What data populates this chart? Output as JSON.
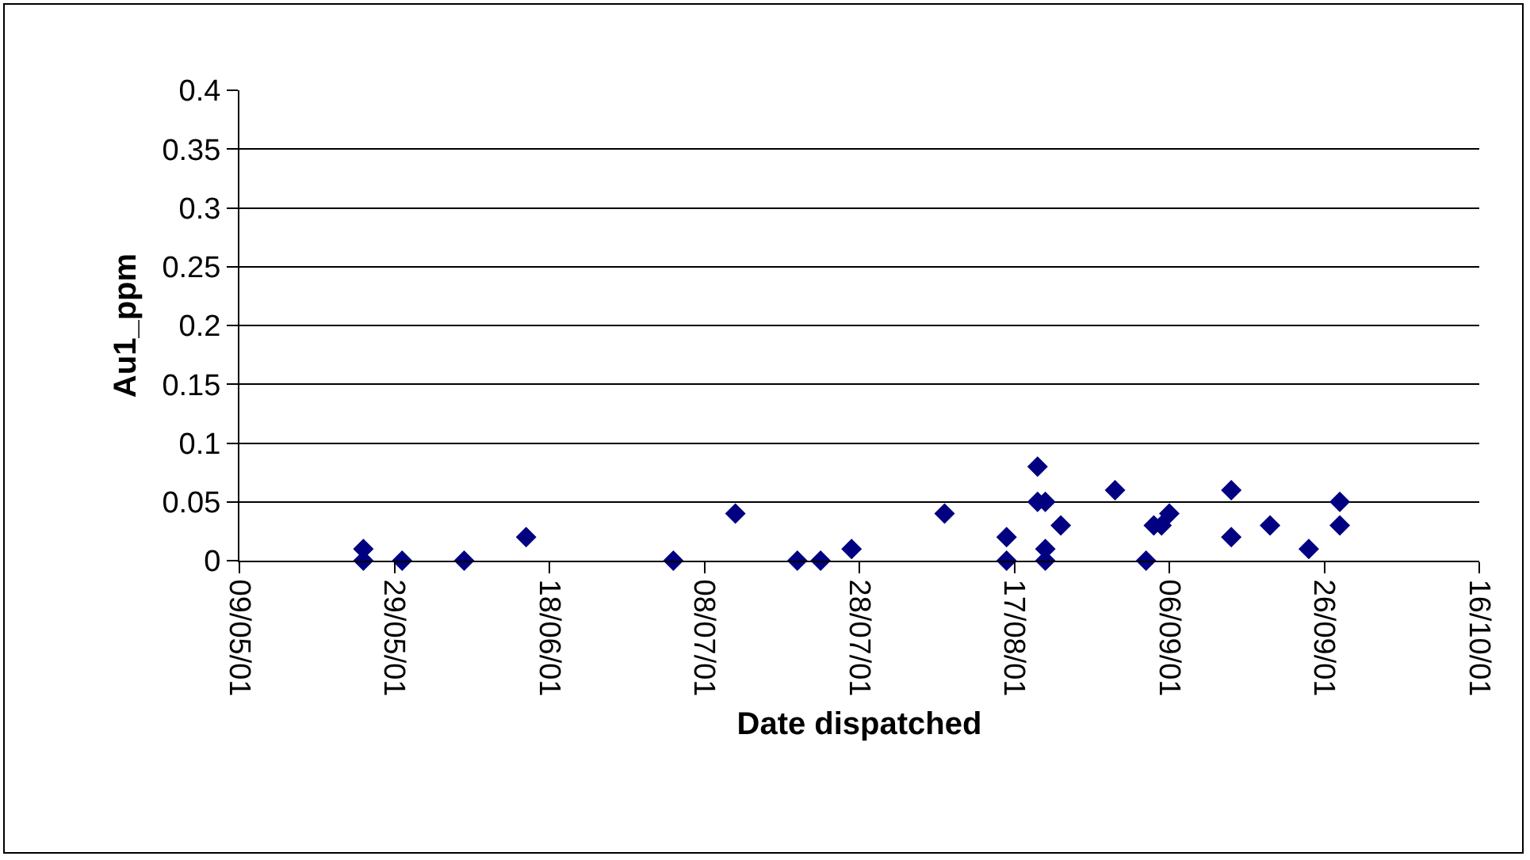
{
  "chart_data": {
    "type": "scatter",
    "xlabel": "Date dispatched",
    "ylabel": "Au1_ppm",
    "x": [
      "2001-05-25",
      "2001-05-25",
      "2001-05-30",
      "2001-06-07",
      "2001-06-15",
      "2001-07-04",
      "2001-07-12",
      "2001-07-20",
      "2001-07-23",
      "2001-07-27",
      "2001-08-08",
      "2001-08-16",
      "2001-08-16",
      "2001-08-20",
      "2001-08-20",
      "2001-08-21",
      "2001-08-21",
      "2001-08-21",
      "2001-08-23",
      "2001-08-30",
      "2001-09-03",
      "2001-09-04",
      "2001-09-05",
      "2001-09-06",
      "2001-09-14",
      "2001-09-14",
      "2001-09-19",
      "2001-09-24",
      "2001-09-28",
      "2001-09-28"
    ],
    "series": [
      {
        "color": "#000080",
        "values": [
          0.01,
          0,
          0,
          0,
          0.02,
          0,
          0.04,
          0,
          0,
          0.01,
          0.04,
          0.02,
          0,
          0.08,
          0.05,
          0.05,
          0.01,
          0,
          0.03,
          0.06,
          0,
          0.03,
          0.03,
          0.04,
          0.06,
          0.02,
          0.03,
          0.01,
          0.05,
          0.03
        ]
      }
    ],
    "xlim": [
      "2001-05-09",
      "2001-10-16"
    ],
    "xticks": [
      {
        "value": "2001-05-09",
        "label": "09/05/01"
      },
      {
        "value": "2001-05-29",
        "label": "29/05/01"
      },
      {
        "value": "2001-06-18",
        "label": "18/06/01"
      },
      {
        "value": "2001-07-08",
        "label": "08/07/01"
      },
      {
        "value": "2001-07-28",
        "label": "28/07/01"
      },
      {
        "value": "2001-08-17",
        "label": "17/08/01"
      },
      {
        "value": "2001-09-06",
        "label": "06/09/01"
      },
      {
        "value": "2001-09-26",
        "label": "26/09/01"
      },
      {
        "value": "2001-10-16",
        "label": "16/10/01"
      }
    ],
    "ylim": [
      0,
      0.4
    ],
    "yticks": [
      0,
      0.05,
      0.1,
      0.15,
      0.2,
      0.25,
      0.3,
      0.35,
      0.4
    ],
    "grid": "y",
    "legend": false,
    "marker": "diamond"
  }
}
